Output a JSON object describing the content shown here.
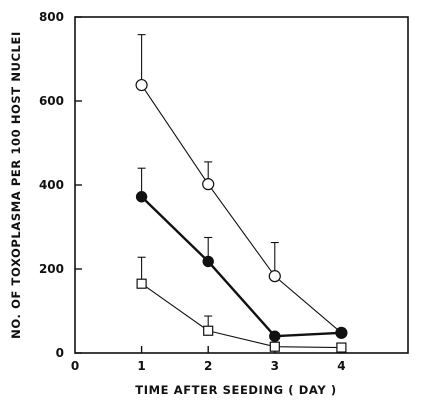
{
  "chart_data": {
    "type": "line",
    "title": "",
    "xlabel": "TIME AFTER SEEDING ( DAY )",
    "ylabel": "NO. OF TOXOPLASMA PER 100 HOST NUCLEI",
    "xlim": [
      0,
      5
    ],
    "ylim": [
      0,
      800
    ],
    "x_ticks": [
      0,
      1,
      2,
      3,
      4
    ],
    "y_ticks": [
      0,
      200,
      400,
      600,
      800
    ],
    "grid": false,
    "legend": "none",
    "series": [
      {
        "marker": "open-circle",
        "x": [
          1,
          2,
          3,
          4
        ],
        "y": [
          638,
          402,
          183,
          48
        ],
        "error_upper": [
          758,
          455,
          263,
          55
        ],
        "line": "thin"
      },
      {
        "marker": "filled-circle",
        "x": [
          1,
          2,
          3,
          4
        ],
        "y": [
          372,
          218,
          40,
          48
        ],
        "error_upper": [
          440,
          275,
          40,
          55
        ],
        "line": "thick"
      },
      {
        "marker": "open-square",
        "x": [
          1,
          2,
          3,
          4
        ],
        "y": [
          165,
          53,
          15,
          13
        ],
        "error_upper": [
          228,
          88,
          15,
          13
        ],
        "line": "thin"
      }
    ]
  }
}
